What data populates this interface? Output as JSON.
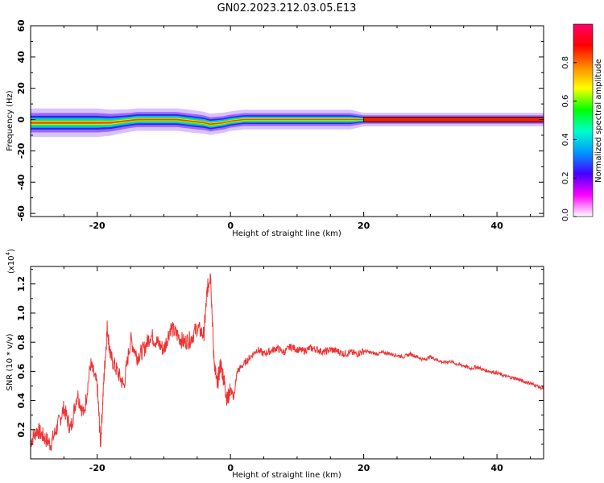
{
  "title": "GN02.2023.212.03.05.E13",
  "chart_data": [
    {
      "type": "heatmap",
      "xlabel": "Height of straight line (km)",
      "ylabel": "Frequency (Hz)",
      "xlim": [
        -30,
        47
      ],
      "ylim": [
        -62,
        60
      ],
      "xticks": [
        -20,
        0,
        20,
        40
      ],
      "yticks": [
        60,
        40,
        20,
        0,
        -20,
        -40,
        -60
      ],
      "colorbar": {
        "label": "Normalized spectral amplitude",
        "range": [
          0,
          1
        ],
        "ticks": [
          "0.0",
          "0.2",
          "0.4",
          "0.6",
          "0.8"
        ],
        "colors": [
          "#ffffff",
          "#ff00ff",
          "#4400ff",
          "#0099ff",
          "#00ffcc",
          "#00ff00",
          "#ffff00",
          "#ff8800",
          "#ff0000",
          "#ff0066"
        ]
      },
      "band": {
        "center_hz": [
          [
            -30,
            -2
          ],
          [
            -27,
            -2
          ],
          [
            -24,
            -2
          ],
          [
            -21,
            -2
          ],
          [
            -18,
            -2
          ],
          [
            -16,
            -1
          ],
          [
            -14,
            0
          ],
          [
            -8,
            0
          ],
          [
            -4,
            -2
          ],
          [
            -3,
            -3
          ],
          [
            -1,
            -2
          ],
          [
            0,
            -1
          ],
          [
            2,
            0
          ],
          [
            10,
            0
          ],
          [
            20,
            0
          ],
          [
            30,
            0
          ],
          [
            40,
            0
          ],
          [
            47,
            0
          ]
        ],
        "half_width_hz": [
          [
            -30,
            4
          ],
          [
            -20,
            4
          ],
          [
            -15,
            3
          ],
          [
            -5,
            3
          ],
          [
            0,
            2.5
          ],
          [
            10,
            2.5
          ],
          [
            18,
            2.5
          ],
          [
            20,
            1.5
          ],
          [
            47,
            1.5
          ]
        ]
      }
    },
    {
      "type": "line",
      "xlabel": "Height of straight line (km)",
      "ylabel": "SNR (10 * v/v)",
      "y_multiplier": "(x10",
      "y_exponent": "4",
      "xlim": [
        -30,
        47
      ],
      "ylim": [
        0,
        1.32
      ],
      "xticks": [
        -20,
        0,
        20,
        40
      ],
      "yticks": [
        0.2,
        0.4,
        0.6,
        0.8,
        1.0,
        1.2
      ],
      "ytick_labels": [
        "0.2",
        "0.4",
        "0.6",
        "0.8",
        "1.0",
        "1.2"
      ],
      "color": "#ee3333",
      "series": [
        {
          "x": [
            -30,
            -29,
            -28,
            -27,
            -26,
            -25,
            -24,
            -23,
            -22,
            -21,
            -20,
            -19.5,
            -19,
            -18.5,
            -18,
            -17,
            -16,
            -15,
            -14,
            -13,
            -12,
            -11,
            -10,
            -9,
            -8,
            -7,
            -6,
            -5,
            -4,
            -3.5,
            -3,
            -2.5,
            -2,
            -1.5,
            -1,
            -0.5,
            0,
            0.5,
            1,
            2,
            3,
            4,
            5,
            6,
            7,
            8,
            9,
            10,
            11,
            12,
            13,
            14,
            15,
            16,
            17,
            18,
            19,
            20,
            21,
            22,
            23,
            24,
            25,
            26,
            27,
            28,
            29,
            30,
            31,
            32,
            33,
            34,
            35,
            36,
            37,
            38,
            39,
            40,
            41,
            42,
            43,
            44,
            45,
            46,
            47
          ],
          "y": [
            0.12,
            0.2,
            0.15,
            0.1,
            0.22,
            0.35,
            0.2,
            0.45,
            0.3,
            0.65,
            0.5,
            0.1,
            0.55,
            0.9,
            0.7,
            0.6,
            0.5,
            0.82,
            0.7,
            0.75,
            0.85,
            0.8,
            0.75,
            0.9,
            0.85,
            0.8,
            0.82,
            0.9,
            0.85,
            1.15,
            1.28,
            0.7,
            0.5,
            0.65,
            0.55,
            0.4,
            0.48,
            0.42,
            0.6,
            0.65,
            0.7,
            0.75,
            0.72,
            0.74,
            0.76,
            0.73,
            0.77,
            0.75,
            0.74,
            0.76,
            0.75,
            0.73,
            0.75,
            0.74,
            0.72,
            0.73,
            0.72,
            0.74,
            0.73,
            0.72,
            0.73,
            0.72,
            0.71,
            0.7,
            0.72,
            0.7,
            0.68,
            0.7,
            0.68,
            0.66,
            0.67,
            0.65,
            0.64,
            0.62,
            0.63,
            0.61,
            0.6,
            0.59,
            0.57,
            0.56,
            0.55,
            0.53,
            0.52,
            0.5,
            0.48
          ]
        }
      ]
    }
  ]
}
